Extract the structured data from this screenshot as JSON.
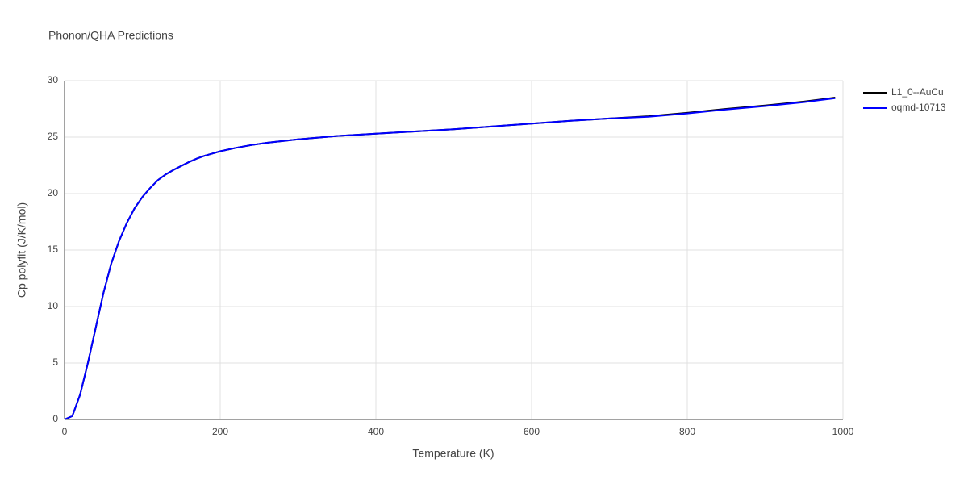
{
  "chart_data": {
    "type": "line",
    "title": "Phonon/QHA Predictions",
    "x_label": "Temperature (K)",
    "y_label": "Cp polyfit (J/K/mol)",
    "x": [
      0,
      10,
      20,
      30,
      40,
      50,
      60,
      70,
      80,
      90,
      100,
      110,
      120,
      130,
      140,
      150,
      160,
      170,
      180,
      190,
      200,
      220,
      240,
      260,
      280,
      300,
      350,
      400,
      450,
      500,
      550,
      600,
      650,
      700,
      750,
      800,
      850,
      900,
      950,
      990
    ],
    "series": [
      {
        "name": "L1_0--AuCu",
        "color": "#000000",
        "values": [
          0,
          0.3,
          2.2,
          5.0,
          8.1,
          11.2,
          13.8,
          15.8,
          17.4,
          18.7,
          19.7,
          20.5,
          21.2,
          21.7,
          22.1,
          22.45,
          22.8,
          23.1,
          23.35,
          23.55,
          23.75,
          24.05,
          24.3,
          24.5,
          24.65,
          24.8,
          25.1,
          25.3,
          25.5,
          25.7,
          25.95,
          26.2,
          26.45,
          26.65,
          26.85,
          27.15,
          27.5,
          27.8,
          28.15,
          28.5
        ]
      },
      {
        "name": "oqmd-10713",
        "color": "#0000ff",
        "values": [
          0,
          0.3,
          2.2,
          5.0,
          8.1,
          11.2,
          13.8,
          15.8,
          17.4,
          18.7,
          19.7,
          20.5,
          21.2,
          21.7,
          22.1,
          22.45,
          22.8,
          23.1,
          23.35,
          23.55,
          23.75,
          24.05,
          24.3,
          24.5,
          24.65,
          24.8,
          25.1,
          25.3,
          25.5,
          25.7,
          25.95,
          26.2,
          26.45,
          26.65,
          26.8,
          27.1,
          27.45,
          27.75,
          28.1,
          28.45
        ]
      }
    ],
    "xlim": [
      0,
      1000
    ],
    "xticks": [
      0,
      200,
      400,
      600,
      800,
      1000
    ],
    "ylim": [
      0,
      30
    ],
    "yticks": [
      0,
      5,
      10,
      15,
      20,
      25,
      30
    ],
    "grid": true
  }
}
